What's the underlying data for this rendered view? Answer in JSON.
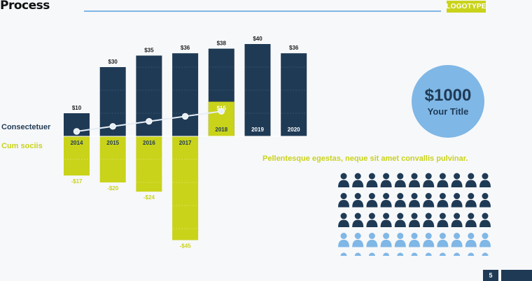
{
  "header": {
    "title": "Process",
    "logo": "LOGOTYPE"
  },
  "legend": {
    "dark": "Consectetuer",
    "yellow": "Cum sociis"
  },
  "colors": {
    "dark": "#1f3a55",
    "yellow": "#c9d31a",
    "blue": "#7fb7e6",
    "line": "#e6eef6"
  },
  "chart_data": {
    "type": "bar",
    "categories": [
      "2014",
      "2015",
      "2016",
      "2017",
      "2018",
      "2019",
      "2020"
    ],
    "series": [
      {
        "name": "Consectetuer",
        "values": [
          10,
          30,
          35,
          36,
          38,
          40,
          36
        ],
        "labels": [
          "$10",
          "$30",
          "$35",
          "$36",
          "$38",
          "$40",
          "$36"
        ]
      },
      {
        "name": "Cum sociis",
        "values": [
          -17,
          -20,
          -24,
          -45,
          15,
          null,
          null
        ],
        "labels": [
          "-$17",
          "-$20",
          "-$24",
          "-$45",
          "$15",
          "",
          ""
        ]
      }
    ],
    "trend_line": [
      0,
      1,
      2,
      3,
      4
    ],
    "ylim": [
      -45,
      40
    ]
  },
  "callout": {
    "value": "$1000",
    "title": "Your Title"
  },
  "tagline": "Pellentesque egestas, neque sit amet convallis pulvinar.",
  "people": {
    "rows": 5,
    "cols": 11,
    "dark_count": 33,
    "icon": "person-icon"
  },
  "footer": {
    "page": "5"
  }
}
